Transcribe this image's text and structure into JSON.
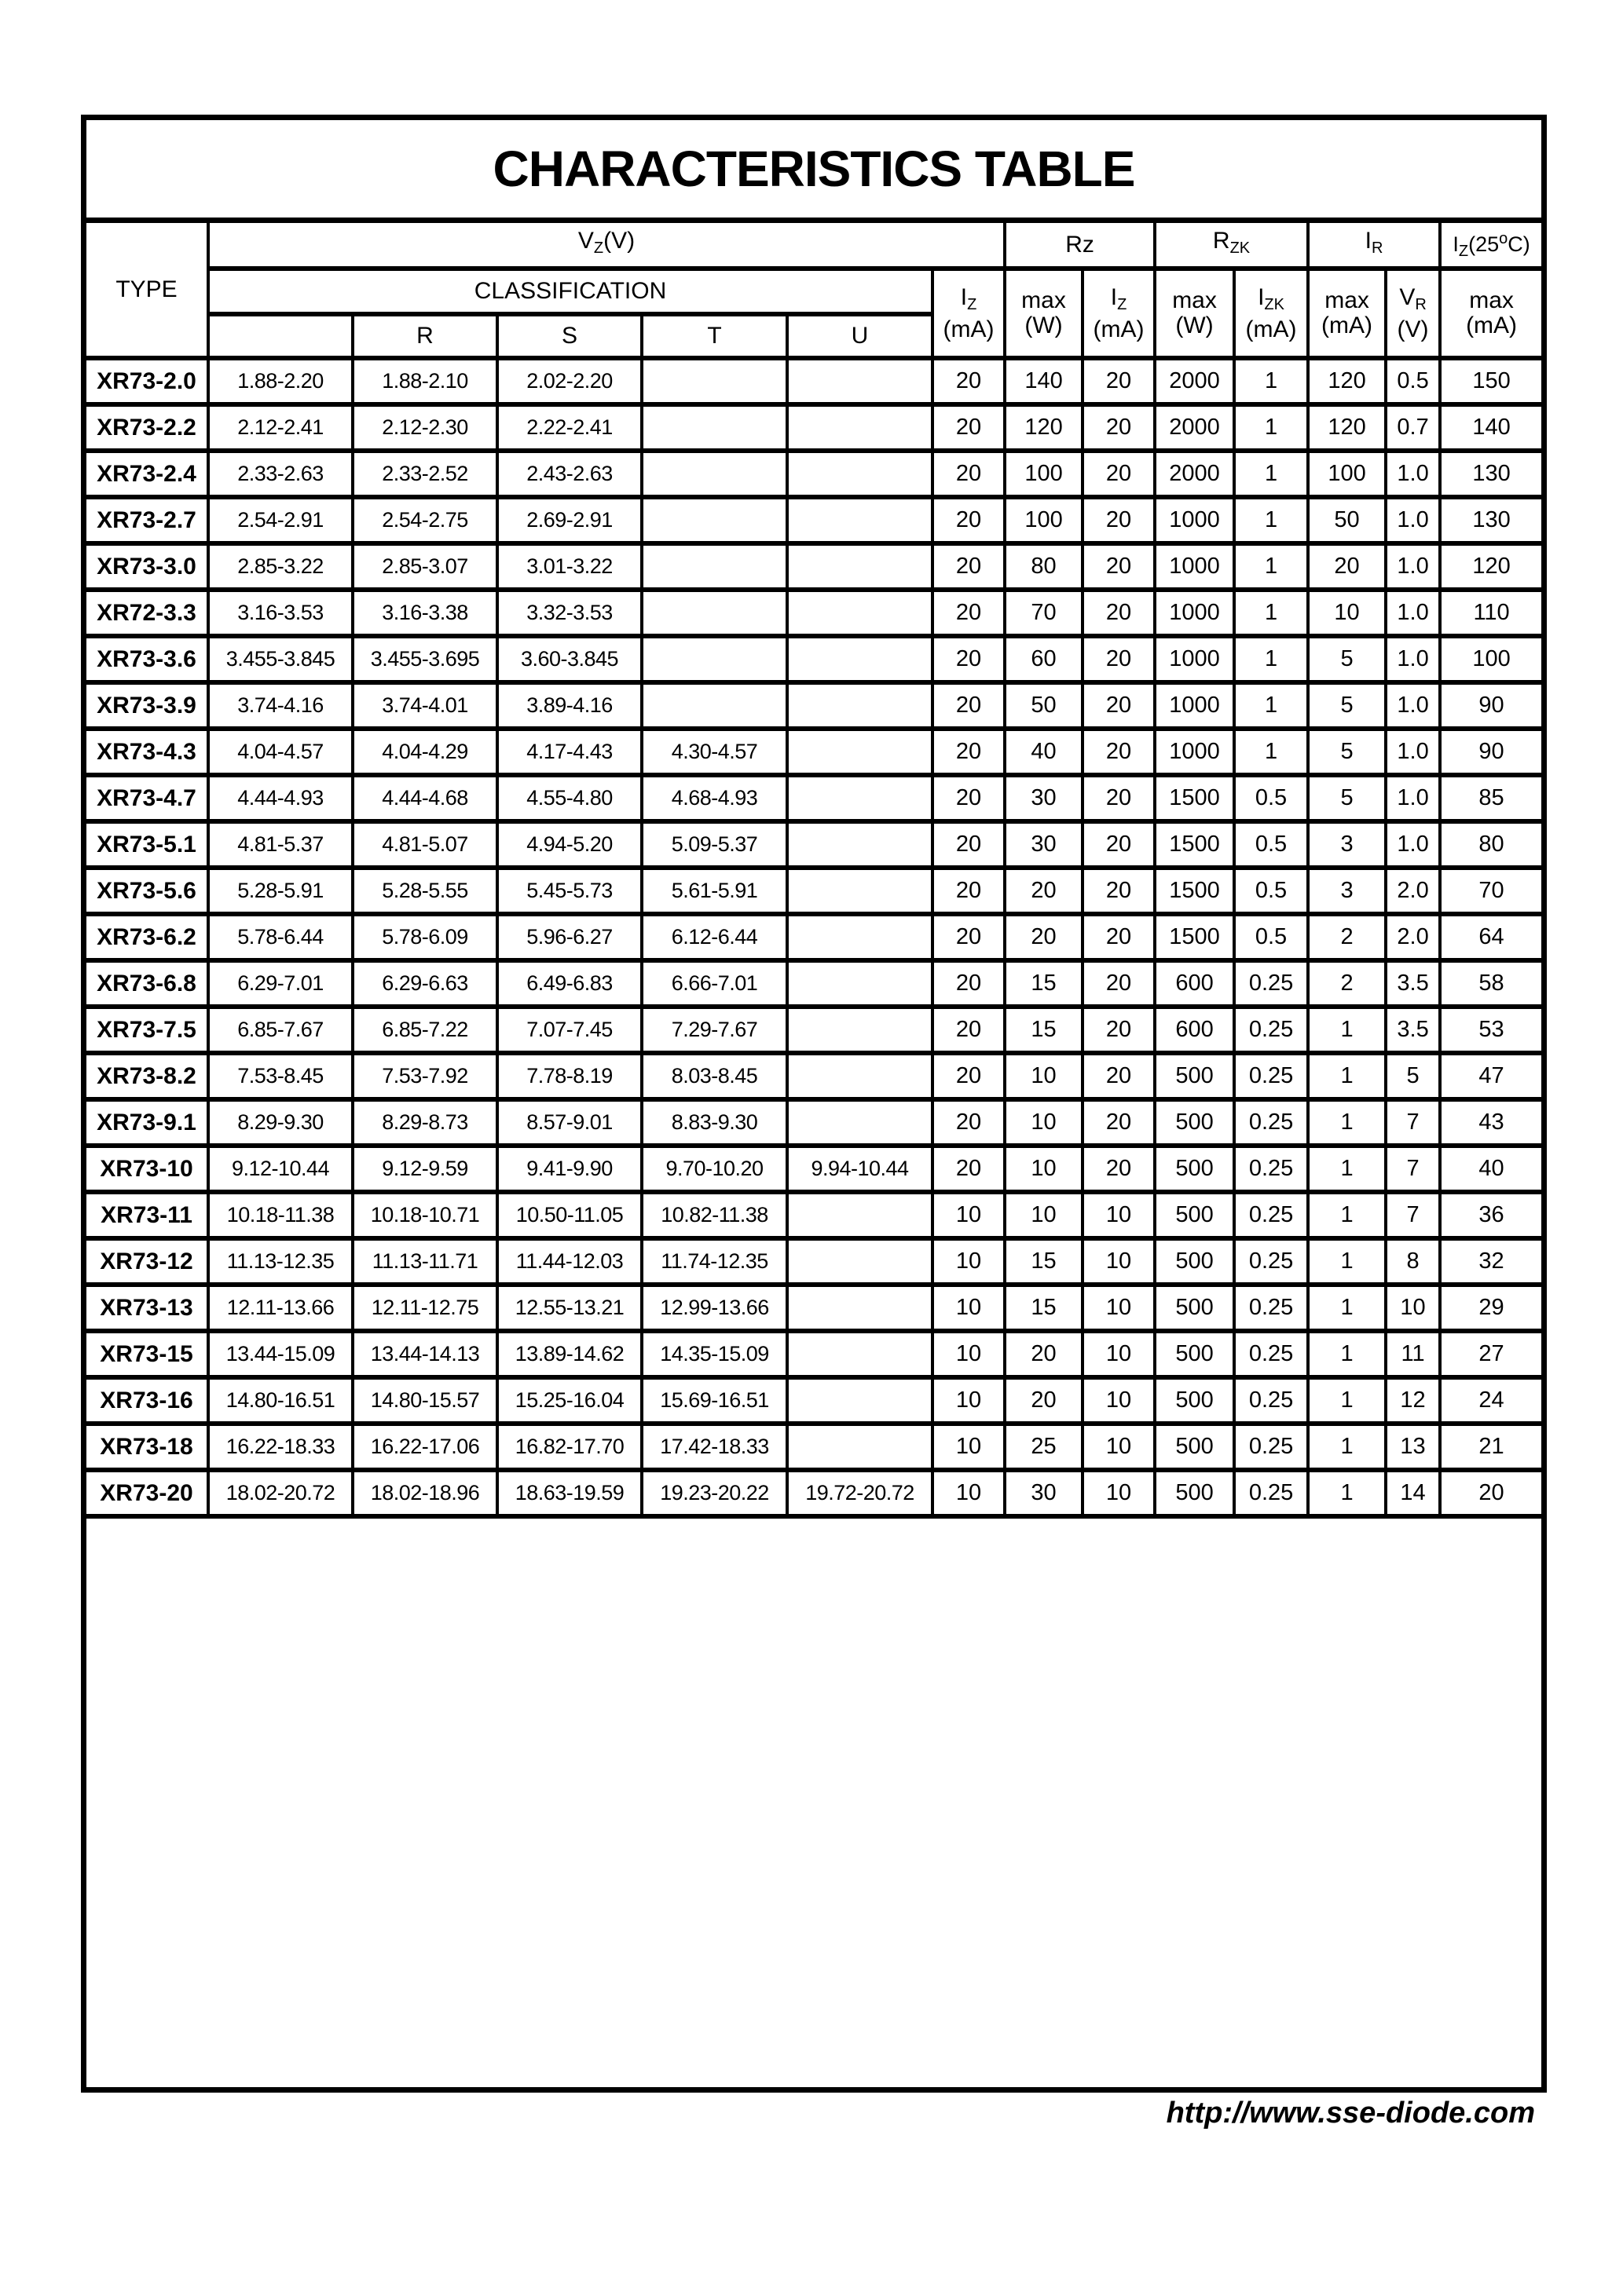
{
  "title": "CHARACTERISTICS TABLE",
  "header": {
    "type": "TYPE",
    "vz": {
      "main": "V",
      "sub": "Z",
      "unit": "(V)"
    },
    "classification": "CLASSIFICATION",
    "classes": [
      "",
      "R",
      "S",
      "T",
      "U"
    ],
    "iz": {
      "main": "I",
      "sub": "Z",
      "unit": "(mA)"
    },
    "rz": "Rz",
    "rz_max": {
      "label": "max",
      "unit": "(W)"
    },
    "rz_iz": {
      "main": "I",
      "sub": "Z",
      "unit": "(mA)"
    },
    "rzk": {
      "main": "R",
      "sub": "ZK"
    },
    "rzk_max": {
      "label": "max",
      "unit": "(W)"
    },
    "izk": {
      "main": "I",
      "sub": "ZK",
      "unit": "(mA)"
    },
    "ir": {
      "main": "I",
      "sub": "R"
    },
    "ir_max": {
      "label": "max",
      "unit": "(mA)"
    },
    "vr": {
      "main": "V",
      "sub": "R",
      "unit": "(V)"
    },
    "izmax": {
      "main": "I",
      "sub": "Z",
      "cond": "(25",
      "deg": "o",
      "cond_end": "C)",
      "label": "max",
      "unit": "(mA)"
    }
  },
  "rows": [
    [
      "XR73-2.0",
      "1.88-2.20",
      "1.88-2.10",
      "2.02-2.20",
      "",
      "",
      "20",
      "140",
      "20",
      "2000",
      "1",
      "120",
      "0.5",
      "150"
    ],
    [
      "XR73-2.2",
      "2.12-2.41",
      "2.12-2.30",
      "2.22-2.41",
      "",
      "",
      "20",
      "120",
      "20",
      "2000",
      "1",
      "120",
      "0.7",
      "140"
    ],
    [
      "XR73-2.4",
      "2.33-2.63",
      "2.33-2.52",
      "2.43-2.63",
      "",
      "",
      "20",
      "100",
      "20",
      "2000",
      "1",
      "100",
      "1.0",
      "130"
    ],
    [
      "XR73-2.7",
      "2.54-2.91",
      "2.54-2.75",
      "2.69-2.91",
      "",
      "",
      "20",
      "100",
      "20",
      "1000",
      "1",
      "50",
      "1.0",
      "130"
    ],
    [
      "XR73-3.0",
      "2.85-3.22",
      "2.85-3.07",
      "3.01-3.22",
      "",
      "",
      "20",
      "80",
      "20",
      "1000",
      "1",
      "20",
      "1.0",
      "120"
    ],
    [
      "XR72-3.3",
      "3.16-3.53",
      "3.16-3.38",
      "3.32-3.53",
      "",
      "",
      "20",
      "70",
      "20",
      "1000",
      "1",
      "10",
      "1.0",
      "110"
    ],
    [
      "XR73-3.6",
      "3.455-3.845",
      "3.455-3.695",
      "3.60-3.845",
      "",
      "",
      "20",
      "60",
      "20",
      "1000",
      "1",
      "5",
      "1.0",
      "100"
    ],
    [
      "XR73-3.9",
      "3.74-4.16",
      "3.74-4.01",
      "3.89-4.16",
      "",
      "",
      "20",
      "50",
      "20",
      "1000",
      "1",
      "5",
      "1.0",
      "90"
    ],
    [
      "XR73-4.3",
      "4.04-4.57",
      "4.04-4.29",
      "4.17-4.43",
      "4.30-4.57",
      "",
      "20",
      "40",
      "20",
      "1000",
      "1",
      "5",
      "1.0",
      "90"
    ],
    [
      "XR73-4.7",
      "4.44-4.93",
      "4.44-4.68",
      "4.55-4.80",
      "4.68-4.93",
      "",
      "20",
      "30",
      "20",
      "1500",
      "0.5",
      "5",
      "1.0",
      "85"
    ],
    [
      "XR73-5.1",
      "4.81-5.37",
      "4.81-5.07",
      "4.94-5.20",
      "5.09-5.37",
      "",
      "20",
      "30",
      "20",
      "1500",
      "0.5",
      "3",
      "1.0",
      "80"
    ],
    [
      "XR73-5.6",
      "5.28-5.91",
      "5.28-5.55",
      "5.45-5.73",
      "5.61-5.91",
      "",
      "20",
      "20",
      "20",
      "1500",
      "0.5",
      "3",
      "2.0",
      "70"
    ],
    [
      "XR73-6.2",
      "5.78-6.44",
      "5.78-6.09",
      "5.96-6.27",
      "6.12-6.44",
      "",
      "20",
      "20",
      "20",
      "1500",
      "0.5",
      "2",
      "2.0",
      "64"
    ],
    [
      "XR73-6.8",
      "6.29-7.01",
      "6.29-6.63",
      "6.49-6.83",
      "6.66-7.01",
      "",
      "20",
      "15",
      "20",
      "600",
      "0.25",
      "2",
      "3.5",
      "58"
    ],
    [
      "XR73-7.5",
      "6.85-7.67",
      "6.85-7.22",
      "7.07-7.45",
      "7.29-7.67",
      "",
      "20",
      "15",
      "20",
      "600",
      "0.25",
      "1",
      "3.5",
      "53"
    ],
    [
      "XR73-8.2",
      "7.53-8.45",
      "7.53-7.92",
      "7.78-8.19",
      "8.03-8.45",
      "",
      "20",
      "10",
      "20",
      "500",
      "0.25",
      "1",
      "5",
      "47"
    ],
    [
      "XR73-9.1",
      "8.29-9.30",
      "8.29-8.73",
      "8.57-9.01",
      "8.83-9.30",
      "",
      "20",
      "10",
      "20",
      "500",
      "0.25",
      "1",
      "7",
      "43"
    ],
    [
      "XR73-10",
      "9.12-10.44",
      "9.12-9.59",
      "9.41-9.90",
      "9.70-10.20",
      "9.94-10.44",
      "20",
      "10",
      "20",
      "500",
      "0.25",
      "1",
      "7",
      "40"
    ],
    [
      "XR73-11",
      "10.18-11.38",
      "10.18-10.71",
      "10.50-11.05",
      "10.82-11.38",
      "",
      "10",
      "10",
      "10",
      "500",
      "0.25",
      "1",
      "7",
      "36"
    ],
    [
      "XR73-12",
      "11.13-12.35",
      "11.13-11.71",
      "11.44-12.03",
      "11.74-12.35",
      "",
      "10",
      "15",
      "10",
      "500",
      "0.25",
      "1",
      "8",
      "32"
    ],
    [
      "XR73-13",
      "12.11-13.66",
      "12.11-12.75",
      "12.55-13.21",
      "12.99-13.66",
      "",
      "10",
      "15",
      "10",
      "500",
      "0.25",
      "1",
      "10",
      "29"
    ],
    [
      "XR73-15",
      "13.44-15.09",
      "13.44-14.13",
      "13.89-14.62",
      "14.35-15.09",
      "",
      "10",
      "20",
      "10",
      "500",
      "0.25",
      "1",
      "11",
      "27"
    ],
    [
      "XR73-16",
      "14.80-16.51",
      "14.80-15.57",
      "15.25-16.04",
      "15.69-16.51",
      "",
      "10",
      "20",
      "10",
      "500",
      "0.25",
      "1",
      "12",
      "24"
    ],
    [
      "XR73-18",
      "16.22-18.33",
      "16.22-17.06",
      "16.82-17.70",
      "17.42-18.33",
      "",
      "10",
      "25",
      "10",
      "500",
      "0.25",
      "1",
      "13",
      "21"
    ],
    [
      "XR73-20",
      "18.02-20.72",
      "18.02-18.96",
      "18.63-19.59",
      "19.23-20.22",
      "19.72-20.72",
      "10",
      "30",
      "10",
      "500",
      "0.25",
      "1",
      "14",
      "20"
    ]
  ],
  "footer": {
    "url": "http://www.sse-diode.com"
  }
}
